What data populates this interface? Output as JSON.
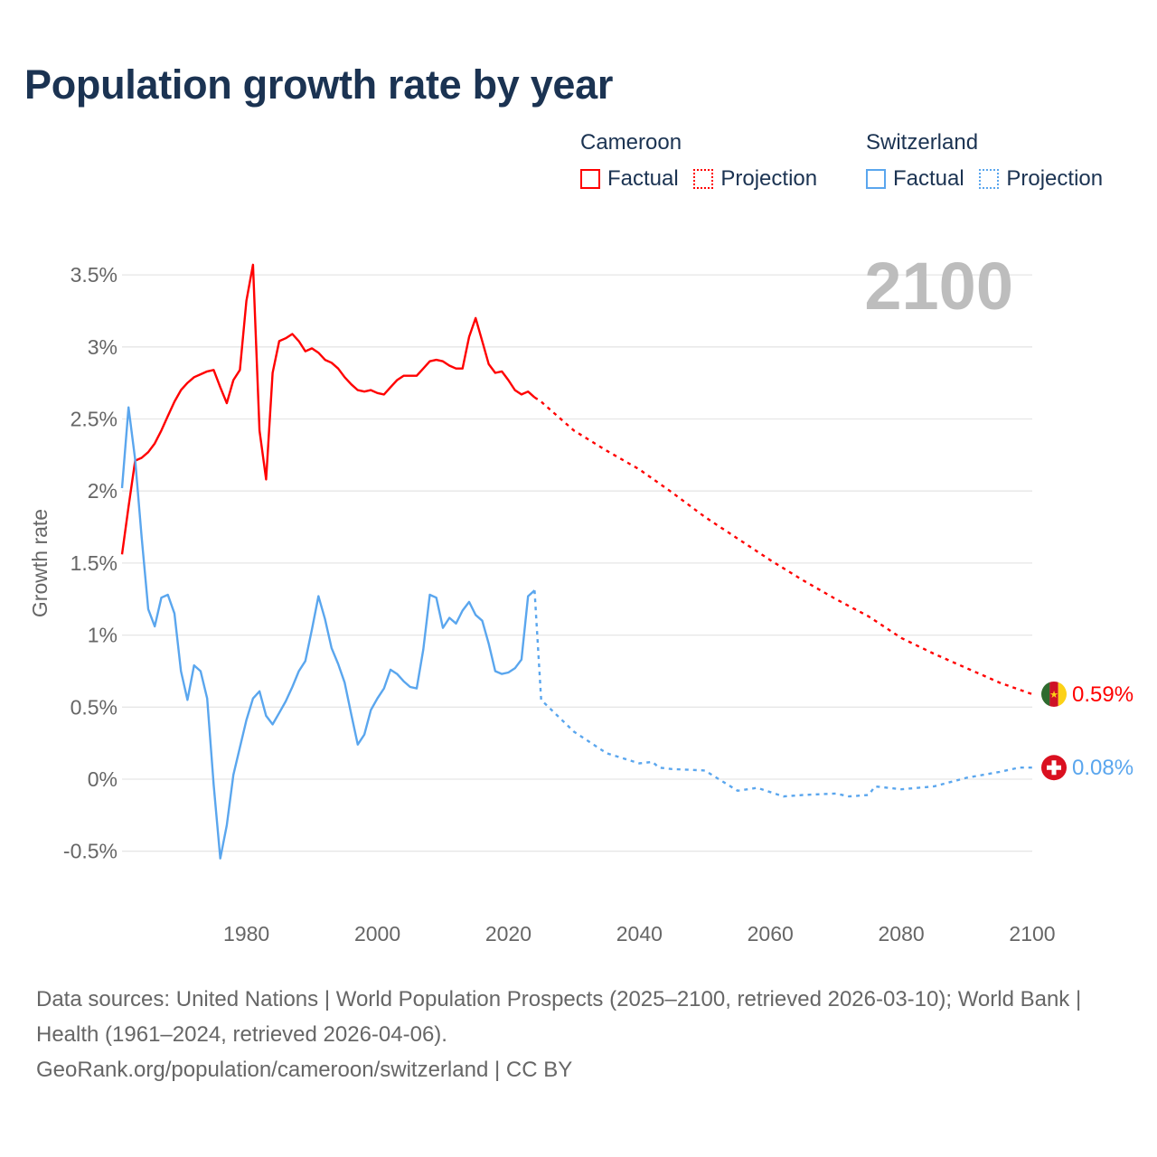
{
  "title": "Population growth rate by year",
  "legend": {
    "groups": [
      {
        "country": "Cameroon",
        "color": "#ff0000",
        "factual": "Factual",
        "projection": "Projection"
      },
      {
        "country": "Switzerland",
        "color": "#5aa6ee",
        "factual": "Factual",
        "projection": "Projection"
      }
    ]
  },
  "chart_data": {
    "type": "line",
    "title": "Population growth rate by year",
    "ylabel": "Growth rate",
    "xlabel": "",
    "xlim": [
      1961,
      2100
    ],
    "ylim": [
      -0.5,
      3.5
    ],
    "grid": true,
    "year_overlay": "2100",
    "x_ticks": [
      1980,
      2000,
      2020,
      2040,
      2060,
      2080,
      2100
    ],
    "y_ticks": [
      {
        "v": -0.5,
        "label": "-0.5%"
      },
      {
        "v": 0,
        "label": "0%"
      },
      {
        "v": 0.5,
        "label": "0.5%"
      },
      {
        "v": 1,
        "label": "1%"
      },
      {
        "v": 1.5,
        "label": "1.5%"
      },
      {
        "v": 2,
        "label": "2%"
      },
      {
        "v": 2.5,
        "label": "2.5%"
      },
      {
        "v": 3,
        "label": "3%"
      },
      {
        "v": 3.5,
        "label": "3.5%"
      }
    ],
    "series": [
      {
        "name": "Cameroon",
        "color": "#ff0000",
        "end_label": "0.59%",
        "flag": "cameroon-flag",
        "factual": {
          "x": [
            1961,
            1962,
            1963,
            1964,
            1965,
            1966,
            1967,
            1968,
            1969,
            1970,
            1971,
            1972,
            1973,
            1974,
            1975,
            1976,
            1977,
            1978,
            1979,
            1980,
            1981,
            1982,
            1983,
            1984,
            1985,
            1986,
            1987,
            1988,
            1989,
            1990,
            1991,
            1992,
            1993,
            1994,
            1995,
            1996,
            1997,
            1998,
            1999,
            2000,
            2001,
            2002,
            2003,
            2004,
            2005,
            2006,
            2007,
            2008,
            2009,
            2010,
            2011,
            2012,
            2013,
            2014,
            2015,
            2016,
            2017,
            2018,
            2019,
            2020,
            2021,
            2022,
            2023,
            2024
          ],
          "y": [
            1.56,
            1.89,
            2.21,
            2.23,
            2.27,
            2.33,
            2.42,
            2.52,
            2.62,
            2.7,
            2.75,
            2.79,
            2.81,
            2.83,
            2.84,
            2.72,
            2.61,
            2.77,
            2.84,
            3.32,
            3.57,
            2.42,
            2.08,
            2.82,
            3.04,
            3.06,
            3.09,
            3.04,
            2.97,
            2.99,
            2.96,
            2.91,
            2.89,
            2.85,
            2.79,
            2.74,
            2.7,
            2.69,
            2.7,
            2.68,
            2.67,
            2.72,
            2.77,
            2.8,
            2.8,
            2.8,
            2.85,
            2.9,
            2.91,
            2.9,
            2.87,
            2.85,
            2.85,
            3.07,
            3.2,
            3.04,
            2.88,
            2.82,
            2.83,
            2.77,
            2.7,
            2.67,
            2.69,
            2.65
          ]
        },
        "projection": {
          "x": [
            2024,
            2025,
            2030,
            2035,
            2040,
            2045,
            2050,
            2055,
            2060,
            2065,
            2070,
            2075,
            2080,
            2085,
            2090,
            2095,
            2100
          ],
          "y": [
            2.65,
            2.62,
            2.42,
            2.28,
            2.15,
            1.99,
            1.82,
            1.67,
            1.52,
            1.38,
            1.25,
            1.13,
            0.98,
            0.87,
            0.77,
            0.67,
            0.59
          ]
        }
      },
      {
        "name": "Switzerland",
        "color": "#5aa6ee",
        "end_label": "0.08%",
        "flag": "switzerland-flag",
        "factual": {
          "x": [
            1961,
            1962,
            1963,
            1964,
            1965,
            1966,
            1967,
            1968,
            1969,
            1970,
            1971,
            1972,
            1973,
            1974,
            1975,
            1976,
            1977,
            1978,
            1979,
            1980,
            1981,
            1982,
            1983,
            1984,
            1985,
            1986,
            1987,
            1988,
            1989,
            1990,
            1991,
            1992,
            1993,
            1994,
            1995,
            1996,
            1997,
            1998,
            1999,
            2000,
            2001,
            2002,
            2003,
            2004,
            2005,
            2006,
            2007,
            2008,
            2009,
            2010,
            2011,
            2012,
            2013,
            2014,
            2015,
            2016,
            2017,
            2018,
            2019,
            2020,
            2021,
            2022,
            2023,
            2024
          ],
          "y": [
            2.02,
            2.58,
            2.22,
            1.68,
            1.18,
            1.06,
            1.26,
            1.28,
            1.15,
            0.75,
            0.55,
            0.79,
            0.75,
            0.56,
            -0.04,
            -0.55,
            -0.32,
            0.03,
            0.22,
            0.41,
            0.56,
            0.61,
            0.44,
            0.38,
            0.46,
            0.54,
            0.64,
            0.75,
            0.82,
            1.04,
            1.27,
            1.11,
            0.91,
            0.8,
            0.67,
            0.45,
            0.24,
            0.31,
            0.48,
            0.56,
            0.63,
            0.76,
            0.73,
            0.68,
            0.64,
            0.63,
            0.9,
            1.28,
            1.26,
            1.05,
            1.12,
            1.08,
            1.17,
            1.23,
            1.14,
            1.1,
            0.94,
            0.75,
            0.73,
            0.74,
            0.77,
            0.83,
            1.27,
            1.31
          ]
        },
        "projection": {
          "x": [
            2024,
            2025,
            2030,
            2035,
            2040,
            2042,
            2043,
            2045,
            2050,
            2055,
            2058,
            2060,
            2062,
            2065,
            2070,
            2072,
            2075,
            2076,
            2080,
            2085,
            2090,
            2095,
            2098,
            2100
          ],
          "y": [
            1.31,
            0.55,
            0.33,
            0.18,
            0.11,
            0.12,
            0.08,
            0.07,
            0.06,
            -0.08,
            -0.06,
            -0.09,
            -0.12,
            -0.11,
            -0.1,
            -0.12,
            -0.11,
            -0.05,
            -0.07,
            -0.05,
            0.01,
            0.05,
            0.08,
            0.08
          ]
        }
      }
    ]
  },
  "footer": {
    "sources": "Data sources: United Nations | World Population Prospects (2025–2100, retrieved 2026-03-10); World Bank | Health (1961–2024, retrieved 2026-04-06).",
    "attribution": "GeoRank.org/population/cameroon/switzerland | CC BY"
  }
}
